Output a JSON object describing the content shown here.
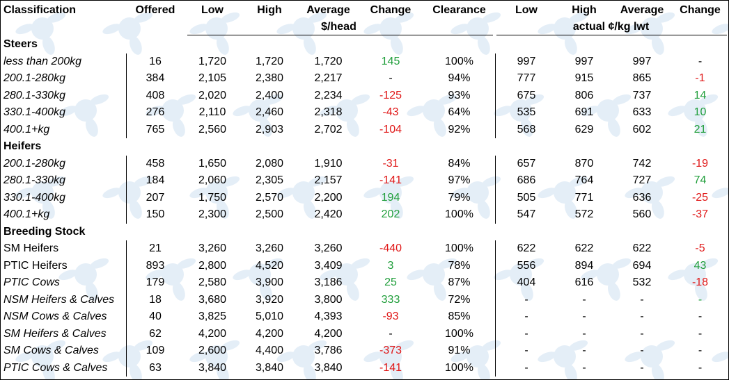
{
  "colors": {
    "positive": "#1f9e3a",
    "negative": "#e01818",
    "watermark": "#dce9f5"
  },
  "watermark": {
    "icon": "stylised-cattle-logo-icon"
  },
  "headers": {
    "classification": "Classification",
    "offered": "Offered",
    "low": "Low",
    "high": "High",
    "average": "Average",
    "change": "Change",
    "clearance": "Clearance",
    "low2": "Low",
    "high2": "High",
    "average2": "Average",
    "change2": "Change"
  },
  "subheaders": {
    "per_head": "$/head",
    "per_kg": "actual ¢/kg lwt"
  },
  "rows": [
    {
      "type": "section",
      "label": "Steers"
    },
    {
      "type": "data",
      "italic": true,
      "label": "less than 200kg",
      "offered": "16",
      "low": "1,720",
      "high": "1,720",
      "avg": "1,720",
      "chg": "145",
      "chg_dir": "pos",
      "clr": "100%",
      "low2": "997",
      "high2": "997",
      "avg2": "997",
      "chg2": "-",
      "chg2_dir": "neu"
    },
    {
      "type": "data",
      "italic": true,
      "label": "200.1-280kg",
      "offered": "384",
      "low": "2,105",
      "high": "2,380",
      "avg": "2,217",
      "chg": "-",
      "chg_dir": "neu",
      "clr": "94%",
      "low2": "777",
      "high2": "915",
      "avg2": "865",
      "chg2": "-1",
      "chg2_dir": "neg"
    },
    {
      "type": "data",
      "italic": true,
      "label": "280.1-330kg",
      "offered": "408",
      "low": "2,020",
      "high": "2,400",
      "avg": "2,234",
      "chg": "-125",
      "chg_dir": "neg",
      "clr": "93%",
      "low2": "675",
      "high2": "806",
      "avg2": "737",
      "chg2": "14",
      "chg2_dir": "pos"
    },
    {
      "type": "data",
      "italic": true,
      "label": "330.1-400kg",
      "offered": "276",
      "low": "2,110",
      "high": "2,460",
      "avg": "2,318",
      "chg": "-43",
      "chg_dir": "neg",
      "clr": "64%",
      "low2": "535",
      "high2": "691",
      "avg2": "633",
      "chg2": "10",
      "chg2_dir": "pos"
    },
    {
      "type": "data",
      "italic": true,
      "label": "400.1+kg",
      "offered": "765",
      "low": "2,560",
      "high": "2,903",
      "avg": "2,702",
      "chg": "-104",
      "chg_dir": "neg",
      "clr": "92%",
      "low2": "568",
      "high2": "629",
      "avg2": "602",
      "chg2": "21",
      "chg2_dir": "pos"
    },
    {
      "type": "section",
      "label": "Heifers"
    },
    {
      "type": "data",
      "italic": true,
      "label": "200.1-280kg",
      "offered": "458",
      "low": "1,650",
      "high": "2,080",
      "avg": "1,910",
      "chg": "-31",
      "chg_dir": "neg",
      "clr": "84%",
      "low2": "657",
      "high2": "870",
      "avg2": "742",
      "chg2": "-19",
      "chg2_dir": "neg"
    },
    {
      "type": "data",
      "italic": true,
      "label": "280.1-330kg",
      "offered": "184",
      "low": "2,060",
      "high": "2,305",
      "avg": "2,157",
      "chg": "-141",
      "chg_dir": "neg",
      "clr": "97%",
      "low2": "686",
      "high2": "764",
      "avg2": "727",
      "chg2": "74",
      "chg2_dir": "pos"
    },
    {
      "type": "data",
      "italic": true,
      "label": "330.1-400kg",
      "offered": "207",
      "low": "1,750",
      "high": "2,570",
      "avg": "2,200",
      "chg": "194",
      "chg_dir": "pos",
      "clr": "79%",
      "low2": "505",
      "high2": "771",
      "avg2": "636",
      "chg2": "-25",
      "chg2_dir": "neg"
    },
    {
      "type": "data",
      "italic": true,
      "label": "400.1+kg",
      "offered": "150",
      "low": "2,300",
      "high": "2,500",
      "avg": "2,420",
      "chg": "202",
      "chg_dir": "pos",
      "clr": "100%",
      "low2": "547",
      "high2": "572",
      "avg2": "560",
      "chg2": "-37",
      "chg2_dir": "neg"
    },
    {
      "type": "section",
      "label": "Breeding Stock"
    },
    {
      "type": "data",
      "italic": false,
      "label": "SM Heifers",
      "offered": "21",
      "low": "3,260",
      "high": "3,260",
      "avg": "3,260",
      "chg": "-440",
      "chg_dir": "neg",
      "clr": "100%",
      "low2": "622",
      "high2": "622",
      "avg2": "622",
      "chg2": "-5",
      "chg2_dir": "neg"
    },
    {
      "type": "data",
      "italic": false,
      "label": "PTIC Heifers",
      "offered": "893",
      "low": "2,800",
      "high": "4,520",
      "avg": "3,409",
      "chg": "3",
      "chg_dir": "pos",
      "clr": "78%",
      "low2": "556",
      "high2": "894",
      "avg2": "694",
      "chg2": "43",
      "chg2_dir": "pos"
    },
    {
      "type": "data",
      "italic": true,
      "label": "PTIC Cows",
      "offered": "179",
      "low": "2,580",
      "high": "3,900",
      "avg": "3,186",
      "chg": "25",
      "chg_dir": "pos",
      "clr": "87%",
      "low2": "404",
      "high2": "616",
      "avg2": "532",
      "chg2": "-18",
      "chg2_dir": "neg"
    },
    {
      "type": "data",
      "italic": true,
      "label": "NSM Heifers & Calves",
      "offered": "18",
      "low": "3,680",
      "high": "3,920",
      "avg": "3,800",
      "chg": "333",
      "chg_dir": "pos",
      "clr": "72%",
      "low2": "-",
      "high2": "-",
      "avg2": "-",
      "chg2": "-",
      "chg2_dir": "pos"
    },
    {
      "type": "data",
      "italic": true,
      "label": "NSM Cows & Calves",
      "offered": "40",
      "low": "3,825",
      "high": "5,010",
      "avg": "4,393",
      "chg": "-93",
      "chg_dir": "neg",
      "clr": "85%",
      "low2": "-",
      "high2": "-",
      "avg2": "-",
      "chg2": "-",
      "chg2_dir": "neu"
    },
    {
      "type": "data",
      "italic": true,
      "label": "SM Heifers & Calves",
      "offered": "62",
      "low": "4,200",
      "high": "4,200",
      "avg": "4,200",
      "chg": "-",
      "chg_dir": "neu",
      "clr": "100%",
      "low2": "-",
      "high2": "-",
      "avg2": "-",
      "chg2": "-",
      "chg2_dir": "neu"
    },
    {
      "type": "data",
      "italic": true,
      "label": "SM Cows & Calves",
      "offered": "109",
      "low": "2,600",
      "high": "4,400",
      "avg": "3,786",
      "chg": "-373",
      "chg_dir": "neg",
      "clr": "91%",
      "low2": "-",
      "high2": "-",
      "avg2": "-",
      "chg2": "-",
      "chg2_dir": "neu"
    },
    {
      "type": "data",
      "italic": true,
      "label": "PTIC Cows & Calves",
      "offered": "63",
      "low": "3,840",
      "high": "3,840",
      "avg": "3,840",
      "chg": "-141",
      "chg_dir": "neg",
      "clr": "100%",
      "low2": "-",
      "high2": "-",
      "avg2": "-",
      "chg2": "-",
      "chg2_dir": "neu"
    }
  ]
}
